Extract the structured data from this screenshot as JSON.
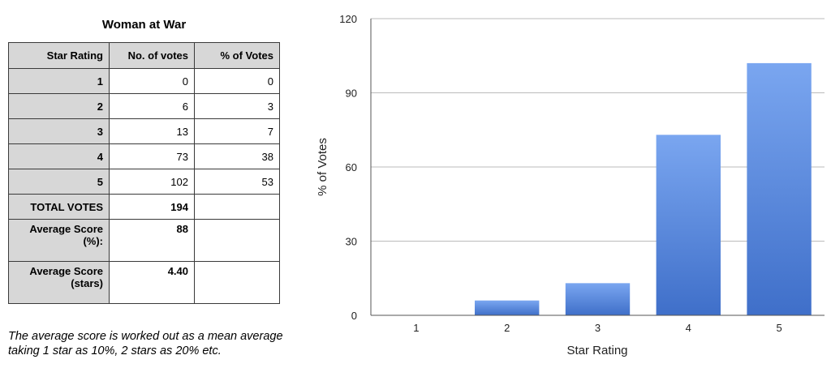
{
  "table": {
    "title": "Woman at War",
    "headers": [
      "Star Rating",
      "No. of votes",
      "% of Votes"
    ],
    "rows": [
      {
        "rating": "1",
        "votes": "0",
        "percent": "0"
      },
      {
        "rating": "2",
        "votes": "6",
        "percent": "3"
      },
      {
        "rating": "3",
        "votes": "13",
        "percent": "7"
      },
      {
        "rating": "4",
        "votes": "73",
        "percent": "38"
      },
      {
        "rating": "5",
        "votes": "102",
        "percent": "53"
      }
    ],
    "total_label": "TOTAL VOTES",
    "total_value": "194",
    "avg_pct_label": "Average Score (%):",
    "avg_pct_value": "88",
    "avg_stars_label": "Average Score (stars)",
    "avg_stars_value": "4.40"
  },
  "footnote": "The average score is worked out as a mean average taking 1 star as 10%, 2 stars as 20% etc.",
  "chart_data": {
    "type": "bar",
    "categories": [
      "1",
      "2",
      "3",
      "4",
      "5"
    ],
    "values": [
      0,
      6,
      13,
      73,
      102
    ],
    "xlabel": "Star Rating",
    "ylabel": "% of Votes",
    "ylim": [
      0,
      120
    ],
    "yticks": [
      0,
      30,
      60,
      90,
      120
    ],
    "grid": true,
    "bar_color_top": "#7aa6f0",
    "bar_color_bottom": "#3f6fc9"
  }
}
